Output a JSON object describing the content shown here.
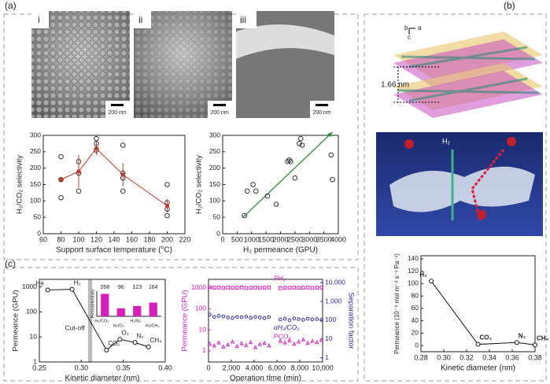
{
  "figure": {
    "panel_labels": [
      "(a)",
      "(b)",
      "(c)"
    ],
    "image_labels": [
      "i",
      "ii",
      "iii"
    ],
    "scale_bars": [
      "200 nm",
      "200 nm",
      "200 nm"
    ],
    "axes": [
      "b",
      "a",
      "c"
    ],
    "spacing": "1.66 nm",
    "gas": "H₂"
  },
  "chart_data": [
    {
      "type": "scatter",
      "xlabel": "Support surface temperature (°C)",
      "ylabel": "H₂/CO₂ selectivity",
      "xlim": [
        60,
        220
      ],
      "xticks": [
        60,
        80,
        100,
        120,
        140,
        160,
        180,
        200,
        220
      ],
      "ylim": [
        0,
        300
      ],
      "yticks": [
        0,
        50,
        100,
        150,
        200,
        250,
        300
      ],
      "series": [
        {
          "color": "#333333",
          "marker": "circle",
          "x": [
            80,
            80,
            80,
            100,
            100,
            100,
            120,
            120,
            120,
            150,
            150,
            150,
            150,
            200,
            200,
            200,
            200
          ],
          "values": [
            235,
            165,
            110,
            220,
            185,
            130,
            290,
            275,
            255,
            270,
            185,
            170,
            130,
            150,
            95,
            75,
            55
          ]
        },
        {
          "color": "#c0392b",
          "marker": "square",
          "line": true,
          "x": [
            80,
            100,
            120,
            150,
            200
          ],
          "values": [
            165,
            190,
            260,
            180,
            85
          ],
          "errors": [
            8,
            50,
            20,
            35,
            20
          ]
        }
      ]
    },
    {
      "type": "scatter",
      "xlabel": "H₂ permeance (GPU)",
      "ylabel": "H₂/CO₂ selectivity",
      "xlim": [
        0,
        4000
      ],
      "xticks": [
        0,
        500,
        1000,
        1500,
        2000,
        2500,
        3000,
        3500,
        4000
      ],
      "ylim": [
        0,
        300
      ],
      "yticks": [
        0,
        50,
        100,
        150,
        200,
        250,
        300
      ],
      "series": [
        {
          "color": "#333333",
          "marker": "circle",
          "x": [
            750,
            850,
            1050,
            1150,
            1550,
            1850,
            2250,
            2300,
            2350,
            2500,
            2650,
            2700,
            2750,
            3750,
            3800
          ],
          "values": [
            55,
            130,
            150,
            130,
            115,
            90,
            220,
            225,
            220,
            170,
            275,
            290,
            270,
            240,
            165
          ]
        }
      ],
      "trend": {
        "color": "#2e8b3a",
        "x": [
          700,
          3800
        ],
        "values": [
          50,
          310
        ]
      }
    },
    {
      "type": "line",
      "xlabel": "Kinetic diameter (nm)",
      "ylabel": "Permeance (GPU)",
      "log_y": true,
      "xlim": [
        0.25,
        0.4
      ],
      "xticks": [
        0.25,
        {
          "value": 0.3,
          "label": "0.30"
        },
        0.35,
        {
          "value": 0.4,
          "label": "0.40"
        }
      ],
      "ylim": [
        1,
        2000
      ],
      "yticks": [
        1,
        10,
        100,
        1000
      ],
      "series": [
        {
          "color": "#111111",
          "marker": "circle",
          "line": true,
          "x": [
            0.26,
            0.289,
            0.33,
            0.346,
            0.364,
            0.38
          ],
          "values": [
            750,
            800,
            3,
            8,
            6,
            4
          ],
          "point_labels": [
            "He",
            "H₂",
            "CO₂",
            "O₂",
            "N₂",
            "CH₄"
          ]
        }
      ],
      "cutoff": {
        "label": "Cut-off",
        "x": [
          0.308,
          0.313
        ]
      }
    },
    {
      "type": "bar",
      "ylabel": "Permselectivity",
      "categories": [
        "H₂/CO₂",
        "H₂/O₂",
        "H₂/N₂",
        "H₂/CH₄"
      ],
      "values": [
        268,
        96,
        123,
        164
      ],
      "color": "#d61fbd",
      "ylim": [
        0,
        300
      ]
    },
    {
      "type": "scatter",
      "xlabel": "Operation time (min)",
      "ylabel": "Permeance (GPU)",
      "y2label": "Separation factor",
      "log_y": true,
      "log_y2": true,
      "ycolor": "#d61fbd",
      "y2color": "#2b2b9a",
      "xlim": [
        0,
        10000
      ],
      "xticks": [
        0,
        {
          "value": 2000,
          "label": "2,000"
        },
        {
          "value": 4000,
          "label": "4,000"
        },
        {
          "value": 6000,
          "label": "6,000"
        },
        {
          "value": 8000,
          "label": "8,000"
        },
        {
          "value": 10000,
          "label": "10,000"
        }
      ],
      "ylim": [
        0.3,
        2500
      ],
      "yticks": [
        1,
        10,
        100,
        1000
      ],
      "y2lim": [
        0.6,
        15000
      ],
      "y2ticks": [
        1,
        10,
        100,
        {
          "value": 1000,
          "label": "1,000"
        },
        {
          "value": 10000,
          "label": "10,000"
        }
      ],
      "series": [
        {
          "name": "PH₂",
          "color": "#d61fbd",
          "marker": "square",
          "x": [
            100,
            500,
            900,
            1300,
            1700,
            2100,
            2500,
            2900,
            3300,
            3700,
            4100,
            4500,
            4900,
            5300,
            6300,
            6700,
            7100,
            7500,
            7900,
            8300,
            8700,
            9100,
            9500,
            9900
          ],
          "values": [
            1050,
            1000,
            1020,
            980,
            1010,
            990,
            1000,
            1030,
            970,
            1000,
            1010,
            990,
            1000,
            1020,
            950,
            1000,
            980,
            1010,
            990,
            1000,
            1020,
            980,
            1000,
            1010
          ]
        },
        {
          "name": "PCO₂",
          "color": "#d61fbd",
          "marker": "triangle",
          "x": [
            100,
            500,
            900,
            1300,
            1700,
            2100,
            2500,
            2900,
            3300,
            3700,
            4100,
            4500,
            4900,
            5300,
            6300,
            6700,
            7100,
            7500,
            7900,
            8300,
            8700,
            9100,
            9500,
            9900
          ],
          "values": [
            2.2,
            1.8,
            2.5,
            1.6,
            2.0,
            2.8,
            1.7,
            2.3,
            1.9,
            2.6,
            1.5,
            2.1,
            2.4,
            1.8,
            3.0,
            2.5,
            3.2,
            2.2,
            2.8,
            3.5,
            2.4,
            3.0,
            2.6,
            3.3
          ]
        },
        {
          "name": "αH₂/CO₂",
          "color": "#2b2b9a",
          "marker": "circle",
          "axis": "y2",
          "x": [
            100,
            500,
            900,
            1300,
            1700,
            2100,
            2500,
            2900,
            3300,
            3700,
            4100,
            4500,
            4900,
            5300,
            6300,
            6700,
            7100,
            7500,
            7900,
            8300,
            8700,
            9100,
            9500,
            9900
          ],
          "values": [
            200,
            150,
            170,
            160,
            140,
            130,
            150,
            145,
            155,
            135,
            150,
            140,
            130,
            150,
            110,
            120,
            100,
            125,
            115,
            105,
            120,
            110,
            115,
            105
          ]
        }
      ]
    },
    {
      "type": "line",
      "xlabel": "Kinetic diameter (nm)",
      "ylabel": "Permeance (10⁻⁸ mol m⁻² s⁻¹ Pa⁻¹)",
      "xlim": [
        0.28,
        0.38
      ],
      "xticks": [
        0.28,
        {
          "value": 0.3,
          "label": "0.30"
        },
        0.32,
        0.34,
        0.36,
        0.38
      ],
      "ylim": [
        -10,
        145
      ],
      "yticks": [
        0,
        20,
        40,
        60,
        80,
        100,
        120,
        140
      ],
      "series": [
        {
          "color": "#111111",
          "marker": "circle",
          "line": true,
          "x": [
            0.289,
            0.33,
            0.364,
            0.38
          ],
          "values": [
            104,
            2,
            5,
            1
          ],
          "point_labels": [
            "H₂",
            "CO₂",
            "N₂",
            "CH₄"
          ]
        }
      ]
    }
  ]
}
